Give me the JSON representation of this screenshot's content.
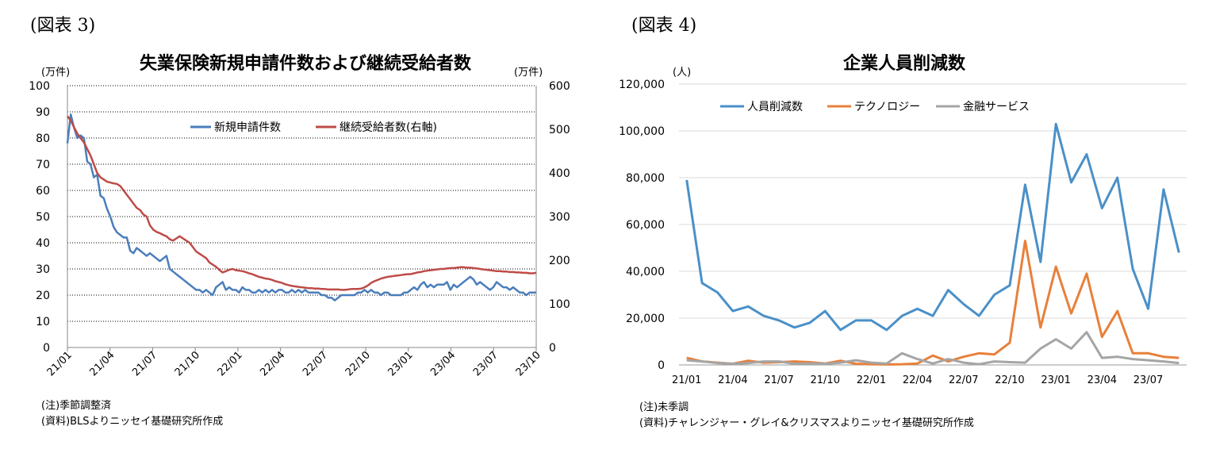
{
  "left": {
    "figure_label": "(図表 3)",
    "unit_left": "(万件)",
    "unit_right": "(万件)",
    "note": "(注)季節調整済",
    "source": "(資料)BLSよりニッセイ基礎研究所作成"
  },
  "right": {
    "figure_label": "(図表 4)",
    "unit": "(人)",
    "note": "(注)未季調",
    "source": "(資料)チャレンジャー・グレイ&クリスマスよりニッセイ基礎研究所作成"
  },
  "chart_data": [
    {
      "type": "line",
      "title": "失業保険新規申請件数および継続受給者数",
      "x_ticks": [
        "21/01",
        "21/04",
        "21/07",
        "21/10",
        "22/01",
        "22/04",
        "22/07",
        "22/10",
        "23/01",
        "23/04",
        "23/07",
        "23/10"
      ],
      "ylim_left": [
        0,
        100
      ],
      "yticks_left": [
        0,
        10,
        20,
        30,
        40,
        50,
        60,
        70,
        80,
        90,
        100
      ],
      "ylim_right": [
        0,
        600
      ],
      "yticks_right": [
        0,
        100,
        200,
        300,
        400,
        500,
        600
      ],
      "grid": true,
      "legend_position": "top-right",
      "series": [
        {
          "name": "新規申請件数",
          "axis": "left",
          "color": "#4a7ebb",
          "values": [
            78,
            89,
            84,
            80,
            81,
            80,
            71,
            70,
            65,
            66,
            58,
            57,
            53,
            50,
            46,
            44,
            43,
            42,
            42,
            37,
            36,
            38,
            37,
            36,
            35,
            36,
            35,
            34,
            33,
            34,
            35,
            30,
            29,
            28,
            27,
            26,
            25,
            24,
            23,
            22,
            22,
            21,
            22,
            21,
            20,
            23,
            24,
            25,
            22,
            23,
            22,
            22,
            21,
            23,
            22,
            22,
            21,
            21,
            22,
            21,
            22,
            21,
            22,
            21,
            22,
            22,
            21,
            21,
            22,
            21,
            22,
            21,
            22,
            21,
            21,
            21,
            21,
            20,
            20,
            19,
            19,
            18,
            19,
            20,
            20,
            20,
            20,
            20,
            21,
            21,
            22,
            21,
            22,
            21,
            21,
            20,
            21,
            21,
            20,
            20,
            20,
            20,
            21,
            21,
            22,
            23,
            22,
            24,
            25,
            23,
            24,
            23,
            24,
            24,
            24,
            25,
            22,
            24,
            23,
            24,
            25,
            26,
            27,
            26,
            24,
            25,
            24,
            23,
            22,
            23,
            25,
            24,
            23,
            23,
            22,
            23,
            22,
            21,
            21,
            20,
            21,
            21,
            21
          ]
        },
        {
          "name": "継続受給者数(右軸)",
          "axis": "right",
          "color": "#be4b48",
          "values": [
            530,
            520,
            505,
            490,
            480,
            470,
            455,
            440,
            420,
            400,
            390,
            385,
            380,
            378,
            376,
            375,
            370,
            360,
            350,
            340,
            330,
            320,
            315,
            305,
            300,
            280,
            270,
            265,
            262,
            258,
            255,
            248,
            245,
            250,
            255,
            250,
            245,
            240,
            230,
            220,
            215,
            210,
            205,
            195,
            190,
            185,
            178,
            172,
            175,
            178,
            180,
            177,
            176,
            175,
            173,
            170,
            168,
            165,
            162,
            160,
            158,
            157,
            155,
            152,
            150,
            148,
            145,
            143,
            141,
            140,
            139,
            138,
            137,
            136,
            136,
            135,
            135,
            134,
            134,
            133,
            133,
            133,
            133,
            132,
            132,
            133,
            134,
            134,
            134,
            135,
            138,
            142,
            148,
            152,
            155,
            158,
            160,
            162,
            163,
            164,
            165,
            166,
            167,
            168,
            168,
            170,
            172,
            173,
            175,
            176,
            177,
            178,
            179,
            180,
            180,
            181,
            182,
            182,
            183,
            184,
            184,
            183,
            183,
            182,
            181,
            180,
            179,
            178,
            177,
            176,
            175,
            175,
            174,
            174,
            173,
            173,
            172,
            172,
            171,
            171,
            170,
            170,
            171
          ]
        }
      ]
    },
    {
      "type": "line",
      "title": "企業人員削減数",
      "categories": [
        "21/01",
        "21/02",
        "21/03",
        "21/04",
        "21/05",
        "21/06",
        "21/07",
        "21/08",
        "21/09",
        "21/10",
        "21/11",
        "21/12",
        "22/01",
        "22/02",
        "22/03",
        "22/04",
        "22/05",
        "22/06",
        "22/07",
        "22/08",
        "22/09",
        "22/10",
        "22/11",
        "22/12",
        "23/01",
        "23/02",
        "23/03",
        "23/04",
        "23/05",
        "23/06",
        "23/07",
        "23/08",
        "23/09"
      ],
      "x_ticks": [
        "21/01",
        "21/04",
        "21/07",
        "21/10",
        "22/01",
        "22/04",
        "22/07",
        "22/10",
        "23/01",
        "23/04",
        "23/07"
      ],
      "ylim": [
        0,
        120000
      ],
      "yticks": [
        0,
        20000,
        40000,
        60000,
        80000,
        100000,
        120000
      ],
      "ytick_labels": [
        "0",
        "20,000",
        "40,000",
        "60,000",
        "80,000",
        "100,000",
        "120,000"
      ],
      "grid": true,
      "legend_position": "top-left",
      "series": [
        {
          "name": "人員削減数",
          "color": "#4a90c8",
          "values": [
            79000,
            35000,
            31000,
            23000,
            25000,
            21000,
            19000,
            16000,
            18000,
            23000,
            15000,
            19000,
            19000,
            15000,
            21000,
            24000,
            21000,
            32000,
            26000,
            21000,
            30000,
            34000,
            77000,
            44000,
            103000,
            78000,
            90000,
            67000,
            80000,
            41000,
            24000,
            75000,
            48000
          ]
        },
        {
          "name": "テクノロジー",
          "color": "#e8803a",
          "values": [
            3000,
            1500,
            1000,
            500,
            1800,
            1000,
            1200,
            1500,
            1200,
            600,
            1800,
            500,
            300,
            200,
            300,
            600,
            4000,
            1500,
            3500,
            5000,
            4500,
            9500,
            53000,
            16000,
            42000,
            22000,
            39000,
            12000,
            23000,
            5000,
            5000,
            3500,
            3000
          ]
        },
        {
          "name": "金融サービス",
          "color": "#a5a5a5",
          "values": [
            2000,
            1500,
            800,
            500,
            800,
            1500,
            1500,
            500,
            600,
            500,
            1000,
            2000,
            1000,
            600,
            5000,
            2500,
            600,
            2500,
            1000,
            300,
            1500,
            1200,
            1000,
            7000,
            11000,
            7000,
            14000,
            3000,
            3500,
            2500,
            2000,
            1500,
            800
          ]
        }
      ]
    }
  ]
}
